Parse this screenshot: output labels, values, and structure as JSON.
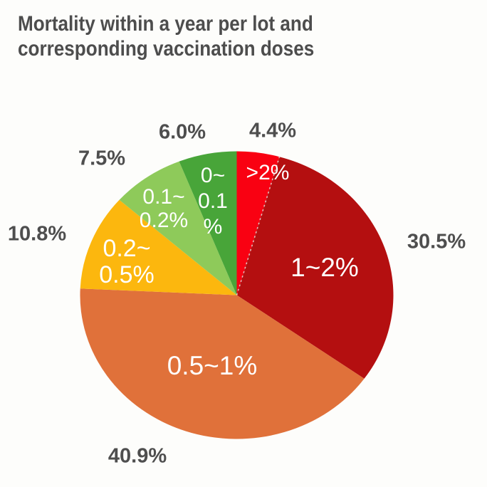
{
  "title": {
    "line1": "Mortality within a year per lot and",
    "line2": "corresponding vaccination doses"
  },
  "chart_data": {
    "type": "pie",
    "title": "Mortality within a year per lot and corresponding vaccination doses",
    "unit": "%",
    "start_angle_deg": 0,
    "direction": "clockwise",
    "slices": [
      {
        "id": "gt2",
        "label": ">2%",
        "value": 4.4,
        "color": "#f90112",
        "external_label": "4.4%",
        "inner_lines": [
          ">2%"
        ]
      },
      {
        "id": "1-2",
        "label": "1~2%",
        "value": 30.5,
        "color": "#b40f10",
        "external_label": "30.5%",
        "inner_lines": [
          "1~2%"
        ]
      },
      {
        "id": "05-1",
        "label": "0.5~1%",
        "value": 40.9,
        "color": "#e0713a",
        "external_label": "40.9%",
        "inner_lines": [
          "0.5~1%"
        ]
      },
      {
        "id": "02-05",
        "label": "0.2~0.5%",
        "value": 10.8,
        "color": "#fcb70e",
        "external_label": "10.8%",
        "inner_lines": [
          "0.2~",
          "0.5%"
        ]
      },
      {
        "id": "01-02",
        "label": "0.1~0.2%",
        "value": 7.5,
        "color": "#8eca5a",
        "external_label": "7.5%",
        "inner_lines": [
          "0.1~",
          "0.2%"
        ]
      },
      {
        "id": "0-01",
        "label": "0~0.1%",
        "value": 6.0,
        "color": "#48a539",
        "external_label": "6.0%",
        "inner_lines": [
          "0~",
          "0.1",
          "%"
        ]
      }
    ],
    "divider": {
      "between": [
        ">2%",
        "1~2%"
      ],
      "style": "dashed",
      "color": "#e6dcda"
    }
  },
  "colors": {
    "background": "#fdfdfb",
    "external_label_text": "#4e4e4e",
    "inner_label_text": "#ffffff",
    "title_text": "#4d4d4d"
  }
}
